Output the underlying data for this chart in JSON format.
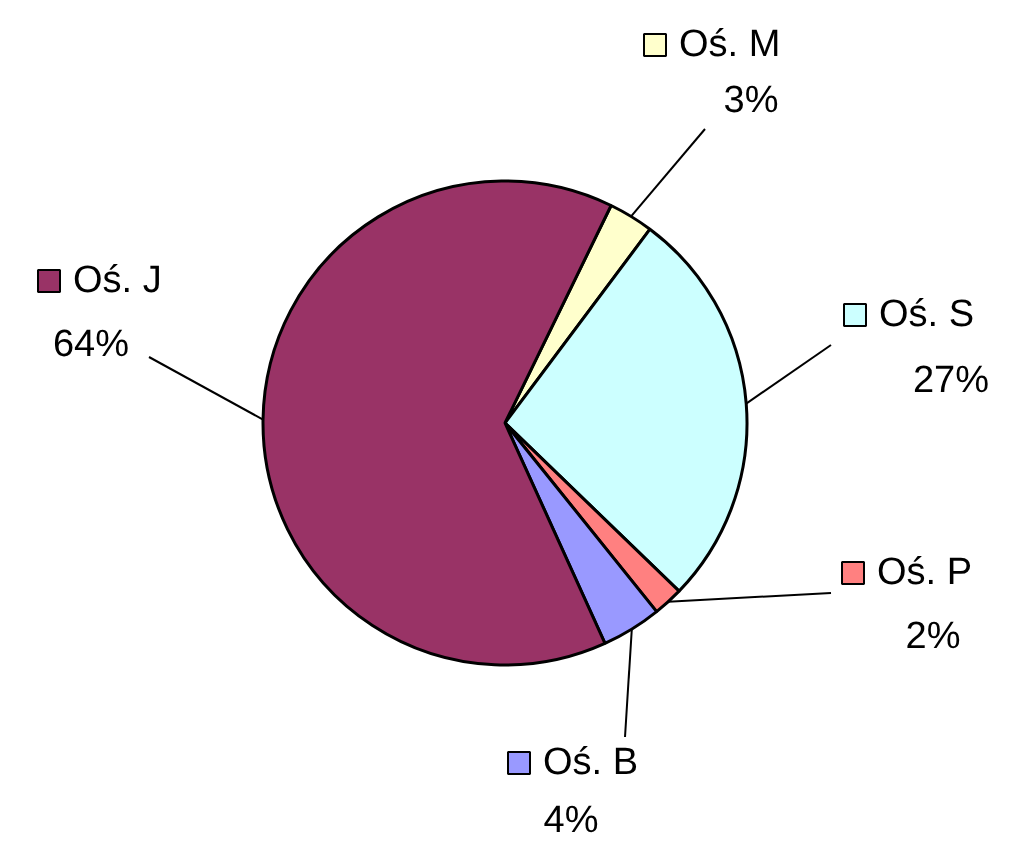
{
  "chart_data": {
    "type": "pie",
    "categories": [
      "Oś. M",
      "Oś. S",
      "Oś. P",
      "Oś. B",
      "Oś. J"
    ],
    "values": [
      3,
      27,
      2,
      4,
      64
    ],
    "value_labels": [
      "3%",
      "27%",
      "2%",
      "4%",
      "64%"
    ],
    "legend": "right",
    "colors": [
      "#ffffcc",
      "#ccffff",
      "#ff8080",
      "#9999ff",
      "#993366"
    ]
  }
}
